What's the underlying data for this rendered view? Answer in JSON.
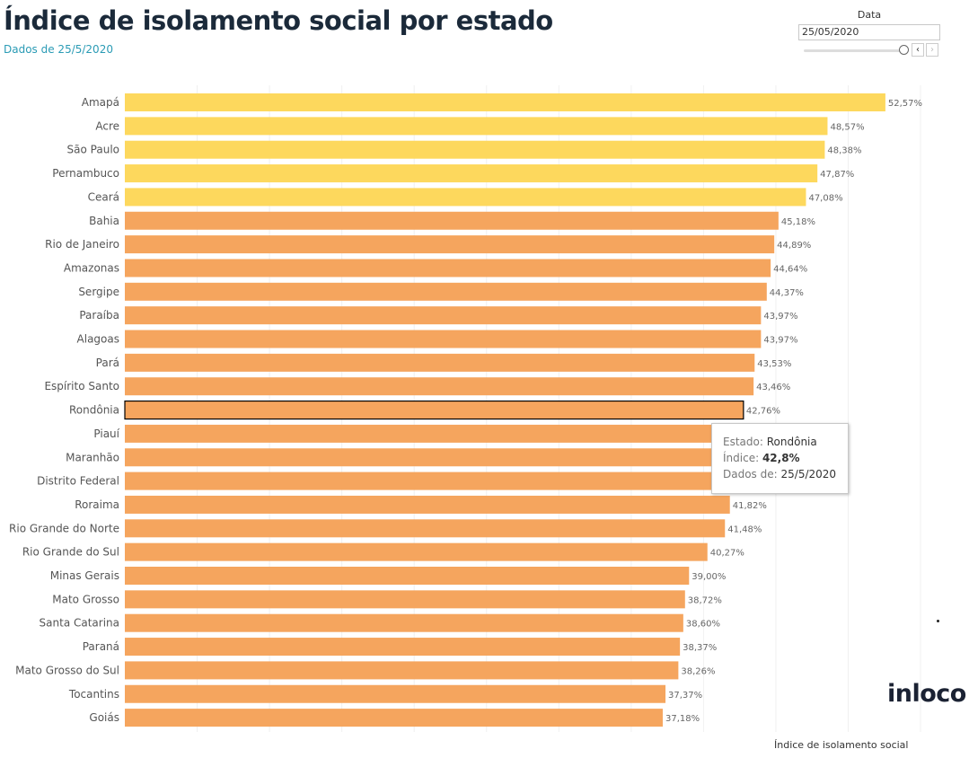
{
  "header": {
    "title": "Índice de isolamento social por estado",
    "subtitle": "Dados de 25/5/2020"
  },
  "filter": {
    "label": "Data",
    "value": "25/05/2020",
    "prev_icon": "chevron-left-icon",
    "next_icon": "chevron-right-icon"
  },
  "colors": {
    "high": "#fdd85d",
    "normal": "#f5a55e",
    "selected_outline": "#000000"
  },
  "tooltip": {
    "estado_label": "Estado:",
    "estado_value": "Rondônia",
    "indice_label": "Índice:",
    "indice_value": "42,8%",
    "data_label": "Dados de:",
    "data_value": "25/5/2020"
  },
  "logo": "inloco",
  "chart_data": {
    "type": "bar",
    "orientation": "horizontal",
    "title": "Índice de isolamento social por estado",
    "xlabel": "Índice de isolamento social",
    "ylabel": "",
    "xlim": [
      0,
      55
    ],
    "grid_step": 5,
    "grid": true,
    "selected": "Rondônia",
    "categories": [
      "Amapá",
      "Acre",
      "São Paulo",
      "Pernambuco",
      "Ceará",
      "Bahia",
      "Rio de Janeiro",
      "Amazonas",
      "Sergipe",
      "Paraíba",
      "Alagoas",
      "Pará",
      "Espírito Santo",
      "Rondônia",
      "Piauí",
      "Maranhão",
      "Distrito Federal",
      "Roraima",
      "Rio Grande do Norte",
      "Rio Grande do Sul",
      "Minas Gerais",
      "Mato Grosso",
      "Santa Catarina",
      "Paraná",
      "Mato Grosso do Sul",
      "Tocantins",
      "Goiás"
    ],
    "values": [
      52.57,
      48.57,
      48.38,
      47.87,
      47.08,
      45.18,
      44.89,
      44.64,
      44.37,
      43.97,
      43.97,
      43.53,
      43.46,
      42.76,
      42.6,
      42.4,
      42.1,
      41.82,
      41.48,
      40.27,
      39.0,
      38.72,
      38.6,
      38.37,
      38.26,
      37.37,
      37.18
    ],
    "labels": [
      "52,57%",
      "48,57%",
      "48,38%",
      "47,87%",
      "47,08%",
      "45,18%",
      "44,89%",
      "44,64%",
      "44,37%",
      "43,97%",
      "43,97%",
      "43,53%",
      "43,46%",
      "42,76%",
      "",
      "",
      "",
      "41,82%",
      "41,48%",
      "40,27%",
      "39,00%",
      "38,72%",
      "38,60%",
      "38,37%",
      "38,26%",
      "37,37%",
      "37,18%"
    ],
    "highlight_count": 5
  }
}
